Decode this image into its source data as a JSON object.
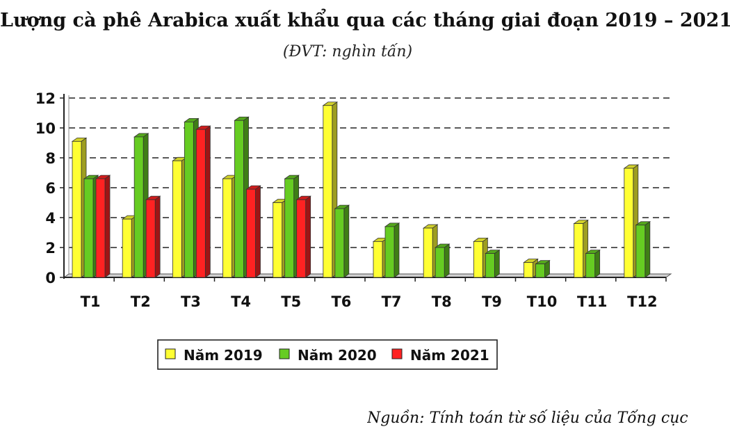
{
  "chart_data": {
    "type": "bar",
    "title": "Lượng cà phê Arabica xuất khẩu qua các tháng giai đoạn 2019 – 2021",
    "subtitle": "(ĐVT: nghìn tấn)",
    "categories": [
      "T1",
      "T2",
      "T3",
      "T4",
      "T5",
      "T6",
      "T7",
      "T8",
      "T9",
      "T10",
      "T11",
      "T12"
    ],
    "series": [
      {
        "name": "Năm 2019",
        "color": "#ffff33",
        "values": [
          9.1,
          3.9,
          7.8,
          6.6,
          5.0,
          11.5,
          2.4,
          3.3,
          2.4,
          1.0,
          3.6,
          7.3
        ]
      },
      {
        "name": "Năm 2020",
        "color": "#66cc22",
        "values": [
          6.6,
          9.4,
          10.4,
          10.5,
          6.6,
          4.6,
          3.4,
          2.0,
          1.6,
          0.9,
          1.6,
          3.5
        ]
      },
      {
        "name": "Năm 2021",
        "color": "#ff2222",
        "values": [
          6.6,
          5.2,
          9.9,
          5.9,
          5.2,
          null,
          null,
          null,
          null,
          null,
          null,
          null
        ]
      }
    ],
    "ylim": [
      0,
      12
    ],
    "yticks": [
      "0",
      "2",
      "4",
      "6",
      "8",
      "10",
      "12"
    ],
    "grid": true,
    "legend": "bottom"
  },
  "source": "Nguồn: Tính toán từ số liệu của Tổng cục"
}
